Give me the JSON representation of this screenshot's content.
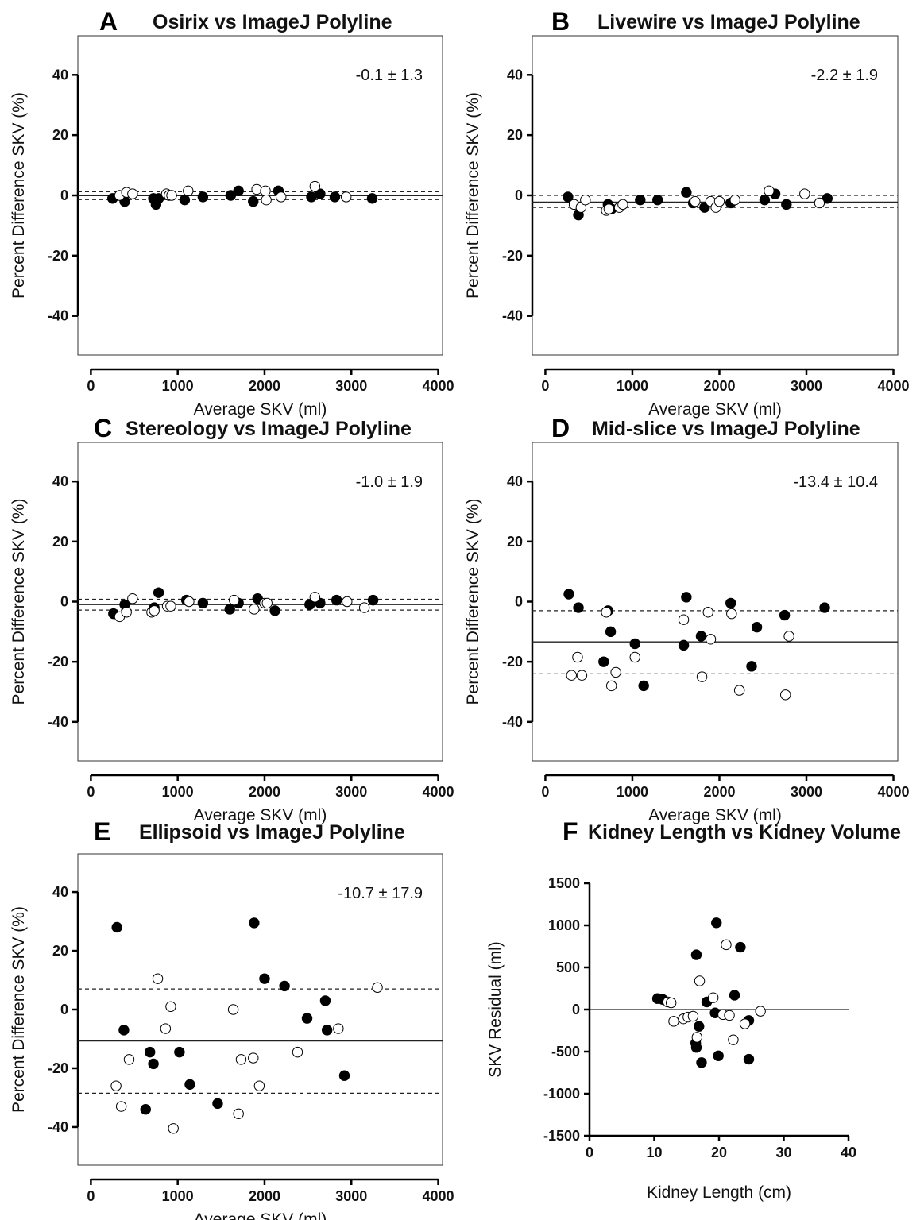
{
  "figure": {
    "panels": [
      {
        "letter": "A",
        "title": "Osirix vs ImageJ Polyline"
      },
      {
        "letter": "B",
        "title": "Livewire vs ImageJ Polyline"
      },
      {
        "letter": "C",
        "title": "Stereology vs  ImageJ Polyline"
      },
      {
        "letter": "D",
        "title": "Mid-slice vs ImageJ Polyline"
      },
      {
        "letter": "E",
        "title": "Ellipsoid vs ImageJ Polyline"
      },
      {
        "letter": "F",
        "title": "Kidney Length vs Kidney Volume"
      }
    ]
  },
  "chart_data": [
    {
      "type": "scatter",
      "title": "Osirix vs ImageJ Polyline",
      "xlabel": "Average SKV (ml)",
      "ylabel": "Percent Difference SKV  (%)",
      "xlim": [
        -150,
        4050
      ],
      "ylim": [
        -53,
        53
      ],
      "xticks": [
        0,
        1000,
        2000,
        3000,
        4000
      ],
      "yticks": [
        -40,
        -20,
        0,
        20,
        40
      ],
      "annotation": "-0.1 ± 1.3",
      "lines": {
        "mean": -0.1,
        "upper": 1.2,
        "lower": -1.4
      },
      "series": [
        {
          "marker": "filled",
          "points": [
            [
              250,
              -1
            ],
            [
              390,
              -2
            ],
            [
              720,
              -1
            ],
            [
              750,
              -3
            ],
            [
              780,
              -1
            ],
            [
              1080,
              -1.5
            ],
            [
              1290,
              -0.5
            ],
            [
              1610,
              0
            ],
            [
              1700,
              1.5
            ],
            [
              1870,
              -2
            ],
            [
              2160,
              1.5
            ],
            [
              2540,
              -0.5
            ],
            [
              2640,
              0.5
            ],
            [
              2810,
              -0.5
            ],
            [
              3240,
              -1
            ]
          ]
        },
        {
          "marker": "open",
          "points": [
            [
              330,
              0
            ],
            [
              410,
              1
            ],
            [
              480,
              0.5
            ],
            [
              870,
              0.5
            ],
            [
              900,
              0
            ],
            [
              930,
              0
            ],
            [
              1120,
              1.5
            ],
            [
              1910,
              2
            ],
            [
              2010,
              1.5
            ],
            [
              2020,
              -1.5
            ],
            [
              2190,
              -0.5
            ],
            [
              2580,
              3
            ],
            [
              2940,
              -0.5
            ]
          ]
        }
      ]
    },
    {
      "type": "scatter",
      "title": "Livewire vs ImageJ Polyline",
      "xlabel": "Average SKV (ml)",
      "ylabel": "Percent Difference SKV  (%)",
      "xlim": [
        -150,
        4050
      ],
      "ylim": [
        -53,
        53
      ],
      "xticks": [
        0,
        1000,
        2000,
        3000,
        4000
      ],
      "yticks": [
        -40,
        -20,
        0,
        20,
        40
      ],
      "annotation": "-2.2 ± 1.9",
      "lines": {
        "mean": -2.2,
        "upper": 0,
        "lower": -4
      },
      "series": [
        {
          "marker": "filled",
          "points": [
            [
              260,
              -0.5
            ],
            [
              380,
              -6.5
            ],
            [
              720,
              -3
            ],
            [
              760,
              -4.5
            ],
            [
              1090,
              -1.5
            ],
            [
              1290,
              -1.5
            ],
            [
              1620,
              1
            ],
            [
              1700,
              -2.5
            ],
            [
              1830,
              -4
            ],
            [
              2130,
              -2.5
            ],
            [
              2520,
              -1.5
            ],
            [
              2640,
              0.5
            ],
            [
              2770,
              -3
            ],
            [
              3240,
              -1
            ]
          ]
        },
        {
          "marker": "open",
          "points": [
            [
              330,
              -3
            ],
            [
              410,
              -4
            ],
            [
              460,
              -1.5
            ],
            [
              700,
              -5
            ],
            [
              730,
              -4.5
            ],
            [
              850,
              -4
            ],
            [
              890,
              -3
            ],
            [
              1720,
              -2
            ],
            [
              1900,
              -2
            ],
            [
              1960,
              -4
            ],
            [
              2000,
              -2
            ],
            [
              2180,
              -1.5
            ],
            [
              2570,
              1.5
            ],
            [
              2980,
              0.5
            ],
            [
              3150,
              -2.5
            ]
          ]
        }
      ]
    },
    {
      "type": "scatter",
      "title": "Stereology vs  ImageJ Polyline",
      "xlabel": "Average SKV (ml)",
      "ylabel": "Percent Difference SKV  (%)",
      "xlim": [
        -150,
        4050
      ],
      "ylim": [
        -53,
        53
      ],
      "xticks": [
        0,
        1000,
        2000,
        3000,
        4000
      ],
      "yticks": [
        -40,
        -20,
        0,
        20,
        40
      ],
      "annotation": "-1.0 ± 1.9",
      "lines": {
        "mean": -1.0,
        "upper": 0.8,
        "lower": -2.8
      },
      "series": [
        {
          "marker": "filled",
          "points": [
            [
              260,
              -4
            ],
            [
              390,
              -1
            ],
            [
              730,
              -2
            ],
            [
              780,
              3
            ],
            [
              1100,
              0.5
            ],
            [
              1290,
              -0.5
            ],
            [
              1600,
              -2.5
            ],
            [
              1700,
              -0.5
            ],
            [
              1920,
              1
            ],
            [
              2120,
              -3
            ],
            [
              2520,
              -1
            ],
            [
              2640,
              -0.5
            ],
            [
              2830,
              0.5
            ],
            [
              3250,
              0.5
            ]
          ]
        },
        {
          "marker": "open",
          "points": [
            [
              330,
              -5
            ],
            [
              410,
              -3.5
            ],
            [
              480,
              1
            ],
            [
              700,
              -3.5
            ],
            [
              730,
              -3
            ],
            [
              880,
              -1.5
            ],
            [
              920,
              -1.5
            ],
            [
              1130,
              0
            ],
            [
              1650,
              0.5
            ],
            [
              1880,
              -2.5
            ],
            [
              2000,
              -0.5
            ],
            [
              2030,
              -0.5
            ],
            [
              2580,
              1.5
            ],
            [
              2950,
              0
            ],
            [
              3150,
              -2
            ]
          ]
        }
      ]
    },
    {
      "type": "scatter",
      "title": "Mid-slice vs ImageJ Polyline",
      "xlabel": "Average SKV (ml)",
      "ylabel": "Percent Difference SKV  (%)",
      "xlim": [
        -150,
        4050
      ],
      "ylim": [
        -53,
        53
      ],
      "xticks": [
        0,
        1000,
        2000,
        3000,
        4000
      ],
      "yticks": [
        -40,
        -20,
        0,
        20,
        40
      ],
      "annotation": "-13.4 ± 10.4",
      "lines": {
        "mean": -13.4,
        "upper": -3,
        "lower": -24
      },
      "series": [
        {
          "marker": "filled",
          "points": [
            [
              270,
              2.5
            ],
            [
              380,
              -2
            ],
            [
              670,
              -20
            ],
            [
              720,
              -3
            ],
            [
              750,
              -10
            ],
            [
              1030,
              -14
            ],
            [
              1130,
              -28
            ],
            [
              1590,
              -14.5
            ],
            [
              1620,
              1.5
            ],
            [
              1790,
              -11.5
            ],
            [
              2130,
              -0.5
            ],
            [
              2370,
              -21.5
            ],
            [
              2430,
              -8.5
            ],
            [
              2750,
              -4.5
            ],
            [
              3210,
              -2
            ]
          ]
        },
        {
          "marker": "open",
          "points": [
            [
              300,
              -24.5
            ],
            [
              370,
              -18.5
            ],
            [
              420,
              -24.5
            ],
            [
              700,
              -3.5
            ],
            [
              760,
              -28
            ],
            [
              810,
              -23.5
            ],
            [
              1030,
              -18.5
            ],
            [
              1590,
              -6
            ],
            [
              1800,
              -25
            ],
            [
              1870,
              -3.5
            ],
            [
              1900,
              -12.5
            ],
            [
              2140,
              -4
            ],
            [
              2230,
              -29.5
            ],
            [
              2760,
              -31
            ],
            [
              2800,
              -11.5
            ]
          ]
        }
      ]
    },
    {
      "type": "scatter",
      "title": "Ellipsoid vs ImageJ Polyline",
      "xlabel": "Average SKV (ml)",
      "ylabel": "Percent Difference SKV  (%)",
      "xlim": [
        -150,
        4050
      ],
      "ylim": [
        -53,
        53
      ],
      "xticks": [
        0,
        1000,
        2000,
        3000,
        4000
      ],
      "yticks": [
        -40,
        -20,
        0,
        20,
        40
      ],
      "annotation": "-10.7 ± 17.9",
      "lines": {
        "mean": -10.7,
        "upper": 7,
        "lower": -28.5
      },
      "series": [
        {
          "marker": "filled",
          "points": [
            [
              300,
              28
            ],
            [
              380,
              -7
            ],
            [
              630,
              -34
            ],
            [
              680,
              -14.5
            ],
            [
              720,
              -18.5
            ],
            [
              1020,
              -14.5
            ],
            [
              1140,
              -25.5
            ],
            [
              1460,
              -32
            ],
            [
              1880,
              29.5
            ],
            [
              2000,
              10.5
            ],
            [
              2230,
              8
            ],
            [
              2490,
              -3
            ],
            [
              2700,
              3
            ],
            [
              2720,
              -7
            ],
            [
              2920,
              -22.5
            ]
          ]
        },
        {
          "marker": "open",
          "points": [
            [
              290,
              -26
            ],
            [
              350,
              -33
            ],
            [
              440,
              -17
            ],
            [
              770,
              10.5
            ],
            [
              860,
              -6.5
            ],
            [
              920,
              1
            ],
            [
              950,
              -40.5
            ],
            [
              1640,
              0
            ],
            [
              1700,
              -35.5
            ],
            [
              1730,
              -17
            ],
            [
              1870,
              -16.5
            ],
            [
              1940,
              -26
            ],
            [
              2380,
              -14.5
            ],
            [
              2850,
              -6.5
            ],
            [
              3300,
              7.5
            ]
          ]
        }
      ]
    },
    {
      "type": "scatter",
      "title": "Kidney Length vs Kidney Volume",
      "xlabel": "Kidney Length (cm)",
      "ylabel": "SKV Residual (ml)",
      "xlim": [
        0,
        40
      ],
      "ylim": [
        -1500,
        1500
      ],
      "xticks": [
        0,
        10,
        20,
        30,
        40
      ],
      "yticks": [
        -1500,
        -1000,
        -500,
        0,
        500,
        1000,
        1500
      ],
      "annotation": "",
      "lines": {
        "zero": 0
      },
      "series": [
        {
          "marker": "filled",
          "points": [
            [
              10.5,
              130
            ],
            [
              11.3,
              120
            ],
            [
              16.5,
              650
            ],
            [
              16.4,
              -400
            ],
            [
              16.5,
              -450
            ],
            [
              16.9,
              -200
            ],
            [
              17.3,
              -630
            ],
            [
              18.1,
              90
            ],
            [
              19.4,
              -40
            ],
            [
              19.6,
              1030
            ],
            [
              19.9,
              -550
            ],
            [
              22.4,
              170
            ],
            [
              23.3,
              740
            ],
            [
              24.6,
              -130
            ],
            [
              24.6,
              -590
            ]
          ]
        },
        {
          "marker": "open",
          "points": [
            [
              12.1,
              90
            ],
            [
              12.6,
              80
            ],
            [
              13.0,
              -140
            ],
            [
              14.5,
              -110
            ],
            [
              15.2,
              -90
            ],
            [
              16.0,
              -80
            ],
            [
              16.6,
              -330
            ],
            [
              17.0,
              340
            ],
            [
              19.1,
              140
            ],
            [
              20.6,
              -60
            ],
            [
              21.1,
              770
            ],
            [
              21.6,
              -70
            ],
            [
              22.2,
              -360
            ],
            [
              24.0,
              -170
            ],
            [
              26.4,
              -20
            ]
          ]
        }
      ]
    }
  ]
}
